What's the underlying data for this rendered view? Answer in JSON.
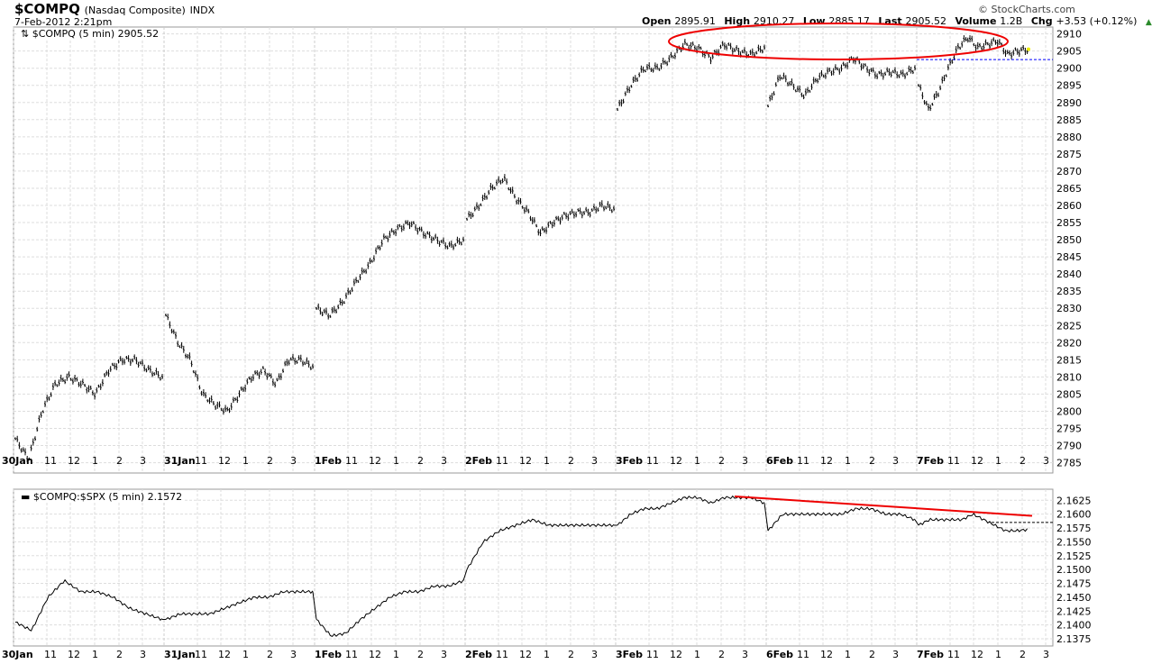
{
  "header": {
    "symbol": "$COMPQ",
    "name": "(Nasdaq Composite)",
    "exchange": "INDX",
    "datetime": "7-Feb-2012 2:21pm",
    "copyright": "© StockCharts.com",
    "stats": [
      {
        "k": "Open",
        "v": "2895.91"
      },
      {
        "k": "High",
        "v": "2910.27"
      },
      {
        "k": "Low",
        "v": "2885.17"
      },
      {
        "k": "Last",
        "v": "2905.52"
      },
      {
        "k": "Volume",
        "v": "1.2B"
      },
      {
        "k": "Chg",
        "v": "+3.53 (+0.12%)"
      }
    ]
  },
  "chart_data": [
    {
      "type": "line",
      "title": "$COMPQ (5 min) 2905.52",
      "ylim": [
        2782,
        2912
      ],
      "yticks": [
        2785,
        2790,
        2795,
        2800,
        2805,
        2810,
        2815,
        2820,
        2825,
        2830,
        2835,
        2840,
        2845,
        2850,
        2855,
        2860,
        2865,
        2870,
        2875,
        2880,
        2885,
        2890,
        2895,
        2900,
        2905,
        2910
      ],
      "days": [
        "30Jan",
        "31Jan",
        "1Feb",
        "2Feb",
        "3Feb",
        "6Feb",
        "7Feb"
      ],
      "hour_ticks": [
        "11",
        "12",
        "1",
        "2",
        "3"
      ],
      "session_fraction": [
        1,
        1,
        1,
        1,
        1,
        1,
        0.74
      ],
      "series": [
        [
          2792,
          2786,
          2800,
          2808,
          2810,
          2808,
          2805,
          2812,
          2815,
          2815,
          2812,
          2810
        ],
        [
          2828,
          2820,
          2815,
          2805,
          2802,
          2800,
          2805,
          2810,
          2812,
          2808,
          2815,
          2815,
          2813
        ],
        [
          2830,
          2828,
          2832,
          2838,
          2843,
          2850,
          2853,
          2855,
          2852,
          2850,
          2848,
          2850
        ],
        [
          2856,
          2860,
          2865,
          2868,
          2862,
          2858,
          2852,
          2855,
          2857,
          2858,
          2858,
          2860,
          2859
        ],
        [
          2888,
          2895,
          2900,
          2900,
          2903,
          2907,
          2906,
          2903,
          2907,
          2905,
          2904,
          2906
        ],
        [
          2889,
          2898,
          2895,
          2892,
          2897,
          2899,
          2900,
          2903,
          2900,
          2898,
          2899,
          2898,
          2900
        ],
        [
          2895,
          2888,
          2893,
          2900,
          2906,
          2909,
          2906,
          2907,
          2908,
          2904,
          2905,
          2905.52
        ]
      ],
      "reference_line": 2902.5
    },
    {
      "type": "line",
      "title": "$COMPQ:$SPX (5 min) 2.1572",
      "ylim": [
        2.1362,
        2.1645
      ],
      "yticks": [
        2.1375,
        2.14,
        2.1425,
        2.145,
        2.1475,
        2.15,
        2.1525,
        2.155,
        2.1575,
        2.16,
        2.1625
      ],
      "series": [
        [
          2.1405,
          2.139,
          2.145,
          2.148,
          2.146,
          2.146,
          2.145,
          2.143,
          2.142,
          2.141
        ],
        [
          2.141,
          2.142,
          2.142,
          2.142,
          2.143,
          2.144,
          2.145,
          2.145,
          2.146,
          2.146,
          2.146
        ],
        [
          2.141,
          2.138,
          2.1385,
          2.141,
          2.143,
          2.145,
          2.146,
          2.146,
          2.147,
          2.147,
          2.148
        ],
        [
          2.15,
          2.155,
          2.157,
          2.158,
          2.159,
          2.158,
          2.158,
          2.158,
          2.158,
          2.158
        ],
        [
          2.158,
          2.16,
          2.161,
          2.161,
          2.162,
          2.163,
          2.163,
          2.162,
          2.163,
          2.163,
          2.163,
          2.162
        ],
        [
          2.157,
          2.16,
          2.16,
          2.16,
          2.16,
          2.16,
          2.161,
          2.161,
          2.16,
          2.16,
          2.159
        ],
        [
          2.158,
          2.159,
          2.159,
          2.159,
          2.159,
          2.16,
          2.159,
          2.158,
          2.157,
          2.157,
          2.1572
        ]
      ],
      "reference_line": 2.1585,
      "trendline": [
        2.1632,
        2.1597
      ]
    }
  ]
}
